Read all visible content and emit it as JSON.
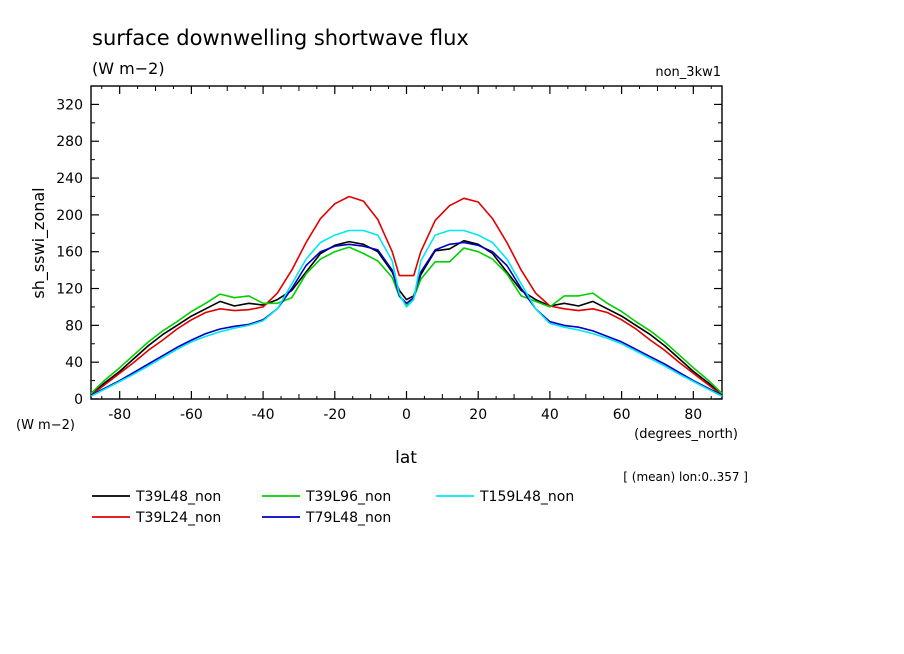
{
  "chart_data": {
    "type": "line",
    "title": "surface downwelling shortwave flux",
    "subtitle": "(W m−2)",
    "experiment_label": "non_3kw1",
    "ylabel": "sh_sswi_zonal",
    "y_unit_label": "(W m−2)",
    "xlabel": "lat",
    "x_unit_label": "(degrees_north)",
    "footnote": "[ (mean) lon:0..357 ]",
    "xlim": [
      -88,
      88
    ],
    "ylim": [
      0,
      340
    ],
    "x_ticks": [
      -80,
      -60,
      -40,
      -20,
      0,
      20,
      40,
      60,
      80
    ],
    "y_ticks": [
      0,
      40,
      80,
      120,
      160,
      200,
      240,
      280,
      320
    ],
    "grid": false,
    "legend_position": "bottom-left",
    "series": [
      {
        "name": "T39L48_non",
        "color": "#000000",
        "points": [
          [
            -88,
            5
          ],
          [
            -84,
            18
          ],
          [
            -80,
            30
          ],
          [
            -76,
            44
          ],
          [
            -72,
            58
          ],
          [
            -68,
            70
          ],
          [
            -64,
            80
          ],
          [
            -60,
            90
          ],
          [
            -56,
            98
          ],
          [
            -52,
            106
          ],
          [
            -48,
            101
          ],
          [
            -44,
            104
          ],
          [
            -40,
            102
          ],
          [
            -36,
            108
          ],
          [
            -32,
            118
          ],
          [
            -28,
            138
          ],
          [
            -24,
            158
          ],
          [
            -20,
            167
          ],
          [
            -16,
            171
          ],
          [
            -12,
            168
          ],
          [
            -8,
            160
          ],
          [
            -4,
            138
          ],
          [
            -2,
            118
          ],
          [
            0,
            108
          ],
          [
            2,
            112
          ],
          [
            4,
            135
          ],
          [
            8,
            161
          ],
          [
            12,
            163
          ],
          [
            16,
            172
          ],
          [
            20,
            168
          ],
          [
            24,
            158
          ],
          [
            28,
            138
          ],
          [
            32,
            118
          ],
          [
            36,
            108
          ],
          [
            40,
            101
          ],
          [
            44,
            104
          ],
          [
            48,
            101
          ],
          [
            52,
            106
          ],
          [
            56,
            98
          ],
          [
            60,
            90
          ],
          [
            64,
            80
          ],
          [
            68,
            70
          ],
          [
            72,
            58
          ],
          [
            76,
            44
          ],
          [
            80,
            30
          ],
          [
            84,
            18
          ],
          [
            88,
            5
          ]
        ]
      },
      {
        "name": "T39L24_non",
        "color": "#e00000",
        "points": [
          [
            -88,
            4
          ],
          [
            -84,
            16
          ],
          [
            -80,
            28
          ],
          [
            -76,
            40
          ],
          [
            -72,
            53
          ],
          [
            -68,
            64
          ],
          [
            -64,
            76
          ],
          [
            -60,
            86
          ],
          [
            -56,
            94
          ],
          [
            -52,
            98
          ],
          [
            -48,
            96
          ],
          [
            -44,
            97
          ],
          [
            -40,
            100
          ],
          [
            -36,
            115
          ],
          [
            -32,
            140
          ],
          [
            -28,
            170
          ],
          [
            -24,
            196
          ],
          [
            -20,
            212
          ],
          [
            -16,
            220
          ],
          [
            -12,
            215
          ],
          [
            -8,
            195
          ],
          [
            -4,
            160
          ],
          [
            -2,
            134
          ],
          [
            0,
            134
          ],
          [
            2,
            134
          ],
          [
            4,
            160
          ],
          [
            8,
            194
          ],
          [
            12,
            210
          ],
          [
            16,
            218
          ],
          [
            20,
            214
          ],
          [
            24,
            196
          ],
          [
            28,
            170
          ],
          [
            32,
            140
          ],
          [
            36,
            115
          ],
          [
            40,
            101
          ],
          [
            44,
            98
          ],
          [
            48,
            96
          ],
          [
            52,
            98
          ],
          [
            56,
            94
          ],
          [
            60,
            86
          ],
          [
            64,
            76
          ],
          [
            68,
            64
          ],
          [
            72,
            53
          ],
          [
            76,
            40
          ],
          [
            80,
            28
          ],
          [
            84,
            16
          ],
          [
            88,
            4
          ]
        ]
      },
      {
        "name": "T39L96_non",
        "color": "#00d000",
        "points": [
          [
            -88,
            6
          ],
          [
            -84,
            21
          ],
          [
            -80,
            34
          ],
          [
            -76,
            48
          ],
          [
            -72,
            62
          ],
          [
            -68,
            74
          ],
          [
            -64,
            84
          ],
          [
            -60,
            95
          ],
          [
            -56,
            104
          ],
          [
            -52,
            114
          ],
          [
            -48,
            110
          ],
          [
            -44,
            112
          ],
          [
            -40,
            104
          ],
          [
            -36,
            104
          ],
          [
            -32,
            110
          ],
          [
            -28,
            136
          ],
          [
            -24,
            152
          ],
          [
            -20,
            160
          ],
          [
            -16,
            165
          ],
          [
            -12,
            158
          ],
          [
            -8,
            150
          ],
          [
            -4,
            132
          ],
          [
            -2,
            112
          ],
          [
            0,
            102
          ],
          [
            2,
            110
          ],
          [
            4,
            130
          ],
          [
            8,
            149
          ],
          [
            12,
            149
          ],
          [
            16,
            164
          ],
          [
            20,
            160
          ],
          [
            24,
            152
          ],
          [
            28,
            136
          ],
          [
            32,
            112
          ],
          [
            36,
            106
          ],
          [
            40,
            100
          ],
          [
            44,
            112
          ],
          [
            48,
            112
          ],
          [
            52,
            115
          ],
          [
            56,
            104
          ],
          [
            60,
            95
          ],
          [
            64,
            84
          ],
          [
            68,
            74
          ],
          [
            72,
            62
          ],
          [
            76,
            48
          ],
          [
            80,
            34
          ],
          [
            84,
            21
          ],
          [
            88,
            6
          ]
        ]
      },
      {
        "name": "T79L48_non",
        "color": "#0000c0",
        "points": [
          [
            -88,
            4
          ],
          [
            -84,
            12
          ],
          [
            -80,
            20
          ],
          [
            -76,
            29
          ],
          [
            -72,
            38
          ],
          [
            -68,
            47
          ],
          [
            -64,
            56
          ],
          [
            -60,
            64
          ],
          [
            -56,
            71
          ],
          [
            -52,
            76
          ],
          [
            -48,
            79
          ],
          [
            -44,
            81
          ],
          [
            -40,
            86
          ],
          [
            -36,
            98
          ],
          [
            -32,
            120
          ],
          [
            -28,
            145
          ],
          [
            -24,
            160
          ],
          [
            -20,
            166
          ],
          [
            -16,
            168
          ],
          [
            -12,
            166
          ],
          [
            -8,
            162
          ],
          [
            -4,
            140
          ],
          [
            -2,
            112
          ],
          [
            0,
            104
          ],
          [
            2,
            110
          ],
          [
            4,
            138
          ],
          [
            8,
            162
          ],
          [
            12,
            168
          ],
          [
            16,
            170
          ],
          [
            20,
            167
          ],
          [
            24,
            160
          ],
          [
            28,
            145
          ],
          [
            32,
            120
          ],
          [
            36,
            98
          ],
          [
            40,
            84
          ],
          [
            44,
            80
          ],
          [
            48,
            78
          ],
          [
            52,
            74
          ],
          [
            56,
            68
          ],
          [
            60,
            62
          ],
          [
            64,
            54
          ],
          [
            68,
            46
          ],
          [
            72,
            38
          ],
          [
            76,
            29
          ],
          [
            80,
            20
          ],
          [
            84,
            12
          ],
          [
            88,
            4
          ]
        ]
      },
      {
        "name": "T159L48_non",
        "color": "#00e8f0",
        "points": [
          [
            -88,
            3
          ],
          [
            -84,
            11
          ],
          [
            -80,
            19
          ],
          [
            -76,
            27
          ],
          [
            -72,
            36
          ],
          [
            -68,
            45
          ],
          [
            -64,
            54
          ],
          [
            -60,
            62
          ],
          [
            -56,
            68
          ],
          [
            -52,
            73
          ],
          [
            -48,
            77
          ],
          [
            -44,
            80
          ],
          [
            -40,
            85
          ],
          [
            -36,
            98
          ],
          [
            -32,
            125
          ],
          [
            -28,
            152
          ],
          [
            -24,
            170
          ],
          [
            -20,
            178
          ],
          [
            -16,
            183
          ],
          [
            -12,
            183
          ],
          [
            -8,
            178
          ],
          [
            -4,
            150
          ],
          [
            -2,
            114
          ],
          [
            0,
            100
          ],
          [
            2,
            108
          ],
          [
            4,
            150
          ],
          [
            8,
            178
          ],
          [
            12,
            183
          ],
          [
            16,
            183
          ],
          [
            20,
            178
          ],
          [
            24,
            170
          ],
          [
            28,
            152
          ],
          [
            32,
            125
          ],
          [
            36,
            98
          ],
          [
            40,
            82
          ],
          [
            44,
            78
          ],
          [
            48,
            75
          ],
          [
            52,
            71
          ],
          [
            56,
            66
          ],
          [
            60,
            60
          ],
          [
            64,
            52
          ],
          [
            68,
            44
          ],
          [
            72,
            36
          ],
          [
            76,
            27
          ],
          [
            80,
            19
          ],
          [
            84,
            11
          ],
          [
            88,
            3
          ]
        ]
      }
    ]
  }
}
